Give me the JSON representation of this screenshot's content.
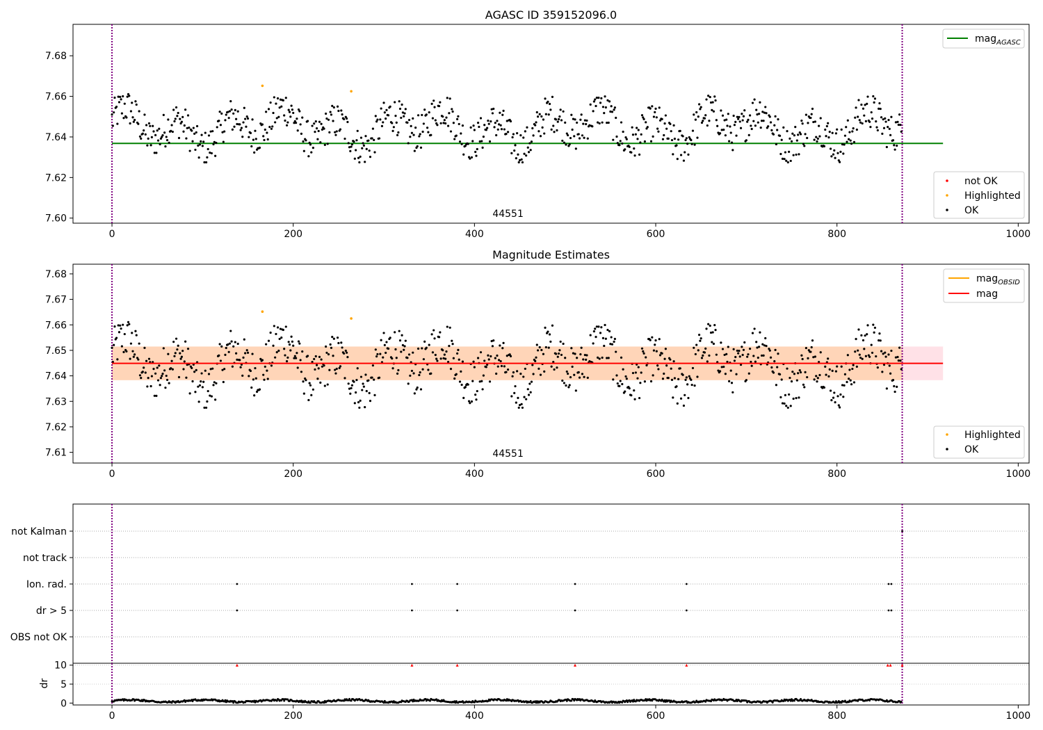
{
  "chart_data": [
    {
      "type": "scatter",
      "title": "AGASC ID 359152096.0",
      "xlim": [
        -43,
        1012
      ],
      "ylim": [
        7.5975,
        7.6955
      ],
      "xticks": [
        0,
        200,
        400,
        600,
        800,
        1000
      ],
      "yticks": [
        7.6,
        7.62,
        7.64,
        7.66,
        7.68
      ],
      "ytick_labels": [
        "7.60",
        "7.62",
        "7.64",
        "7.66",
        "7.68"
      ],
      "annotation": "44551",
      "annotation_x": 437,
      "vlines": [
        0,
        872
      ],
      "hline": {
        "y": 7.6368,
        "x": [
          0,
          917
        ],
        "color": "#008000"
      },
      "legend_line": {
        "label": "mag",
        "sub": "AGASC",
        "color": "#008000",
        "position": "upper right"
      },
      "legend_points": {
        "position": "lower right",
        "entries": [
          {
            "label": "not OK",
            "color": "#ff0000"
          },
          {
            "label": "Highlighted",
            "color": "#ffa500"
          },
          {
            "label": "OK",
            "color": "#000000"
          }
        ]
      },
      "highlighted": [
        [
          166,
          7.6652
        ],
        [
          264,
          7.6625
        ]
      ],
      "series_ok": {
        "n": 872,
        "mean": 7.6445,
        "note": "approx. 872 per-observation estimates, spread ≈ 7.627–7.661"
      }
    },
    {
      "type": "scatter",
      "title": "Magnitude Estimates",
      "xlim": [
        -43,
        1012
      ],
      "ylim": [
        7.6058,
        7.6838
      ],
      "xticks": [
        0,
        200,
        400,
        600,
        800,
        1000
      ],
      "yticks": [
        7.61,
        7.62,
        7.63,
        7.64,
        7.65,
        7.66,
        7.67,
        7.68
      ],
      "ytick_labels": [
        "7.61",
        "7.62",
        "7.63",
        "7.64",
        "7.65",
        "7.66",
        "7.67",
        "7.68"
      ],
      "annotation": "44551",
      "annotation_x": 437,
      "vlines": [
        0,
        872
      ],
      "hline": {
        "y": 7.6449,
        "x": [
          0,
          917
        ],
        "color": "#ff0000"
      },
      "band_obsid": {
        "y": [
          7.6383,
          7.6515
        ],
        "x": [
          0,
          872
        ],
        "color": "#ffa500"
      },
      "band_mag": {
        "y": [
          7.6383,
          7.6515
        ],
        "x": [
          0,
          917
        ],
        "color": "#ff6a85"
      },
      "legend_line": [
        {
          "label": "mag",
          "sub": "OBSID",
          "color": "#ffa500"
        },
        {
          "label": "mag",
          "sub": "",
          "color": "#ff0000"
        }
      ],
      "legend_points": {
        "position": "lower right",
        "entries": [
          {
            "label": "Highlighted",
            "color": "#ffa500"
          },
          {
            "label": "OK",
            "color": "#000000"
          }
        ]
      },
      "highlighted": [
        [
          166,
          7.6652
        ],
        [
          264,
          7.6625
        ]
      ]
    },
    {
      "type": "scatter",
      "xlim": [
        -43,
        1012
      ],
      "xticks": [
        0,
        200,
        400,
        600,
        800,
        1000
      ],
      "vlines": [
        0,
        872
      ],
      "flag_labels": [
        "not Kalman",
        "not track",
        "Ion. rad.",
        "dr > 5",
        "OBS not OK"
      ],
      "flags": {
        "not Kalman": [
          872
        ],
        "not track": [],
        "Ion. rad.": [
          138,
          331,
          381,
          511,
          634,
          857,
          860
        ],
        "dr > 5": [
          138,
          331,
          381,
          511,
          634,
          857,
          860
        ],
        "OBS not OK": []
      }
    },
    {
      "type": "scatter",
      "ylabel": "dr",
      "xlim": [
        -43,
        1012
      ],
      "ylim": [
        -0.5,
        10.5
      ],
      "xticks": [
        0,
        200,
        400,
        600,
        800,
        1000
      ],
      "yticks": [
        0,
        5,
        10
      ],
      "ytick_labels": [
        "0",
        "5",
        "10"
      ],
      "vlines": [
        0,
        872
      ],
      "outliers": [
        138,
        331,
        381,
        511,
        634,
        856,
        859,
        872
      ],
      "note": "dr ≈ 0.2–1.2 for every observation; outliers drawn at the top edge (10)"
    }
  ]
}
